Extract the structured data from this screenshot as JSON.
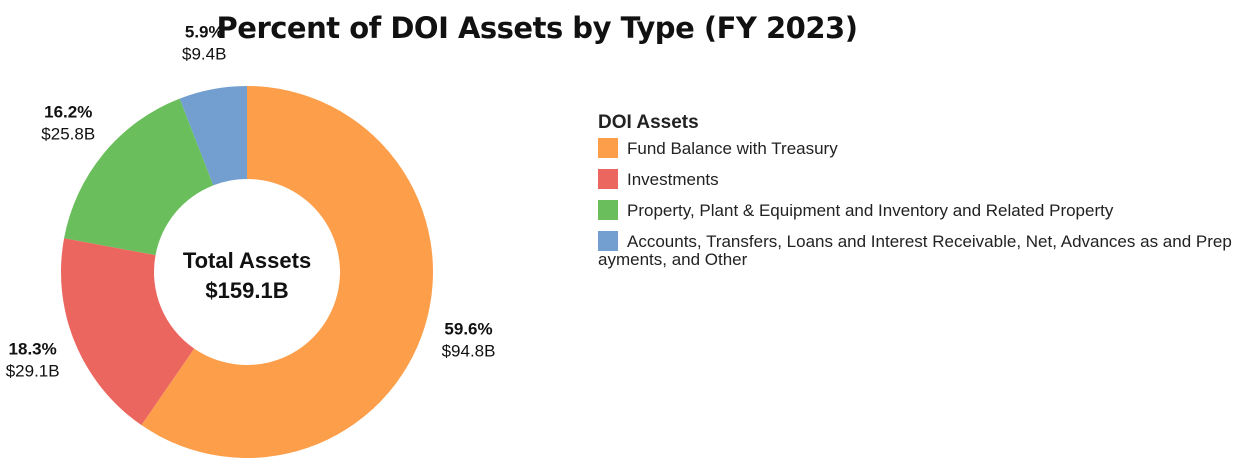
{
  "chart_data": {
    "type": "donut",
    "title": "Percent of DOI Assets by Type (FY 2023)",
    "legend_title": "DOI Assets",
    "center_title": "Total Assets",
    "center_value": "$159.1B",
    "categories": [
      "Fund Balance with Treasury",
      "Investments",
      "Property, Plant & Equipment  and Inventory and Related Property",
      "Accounts, Transfers, Loans and Interest Receivable, Net, Advances as and Prepayments, and Other"
    ],
    "values": [
      59.6,
      18.3,
      16.2,
      5.9
    ],
    "value_labels": [
      "59.6%",
      "18.3%",
      "16.2%",
      "5.9%"
    ],
    "amount_labels": [
      "$94.8B",
      "$29.1B",
      "$25.8B",
      "$9.4B"
    ],
    "colors": [
      "#fd9e4a",
      "#ec6660",
      "#6abf5c",
      "#729fcf"
    ]
  }
}
